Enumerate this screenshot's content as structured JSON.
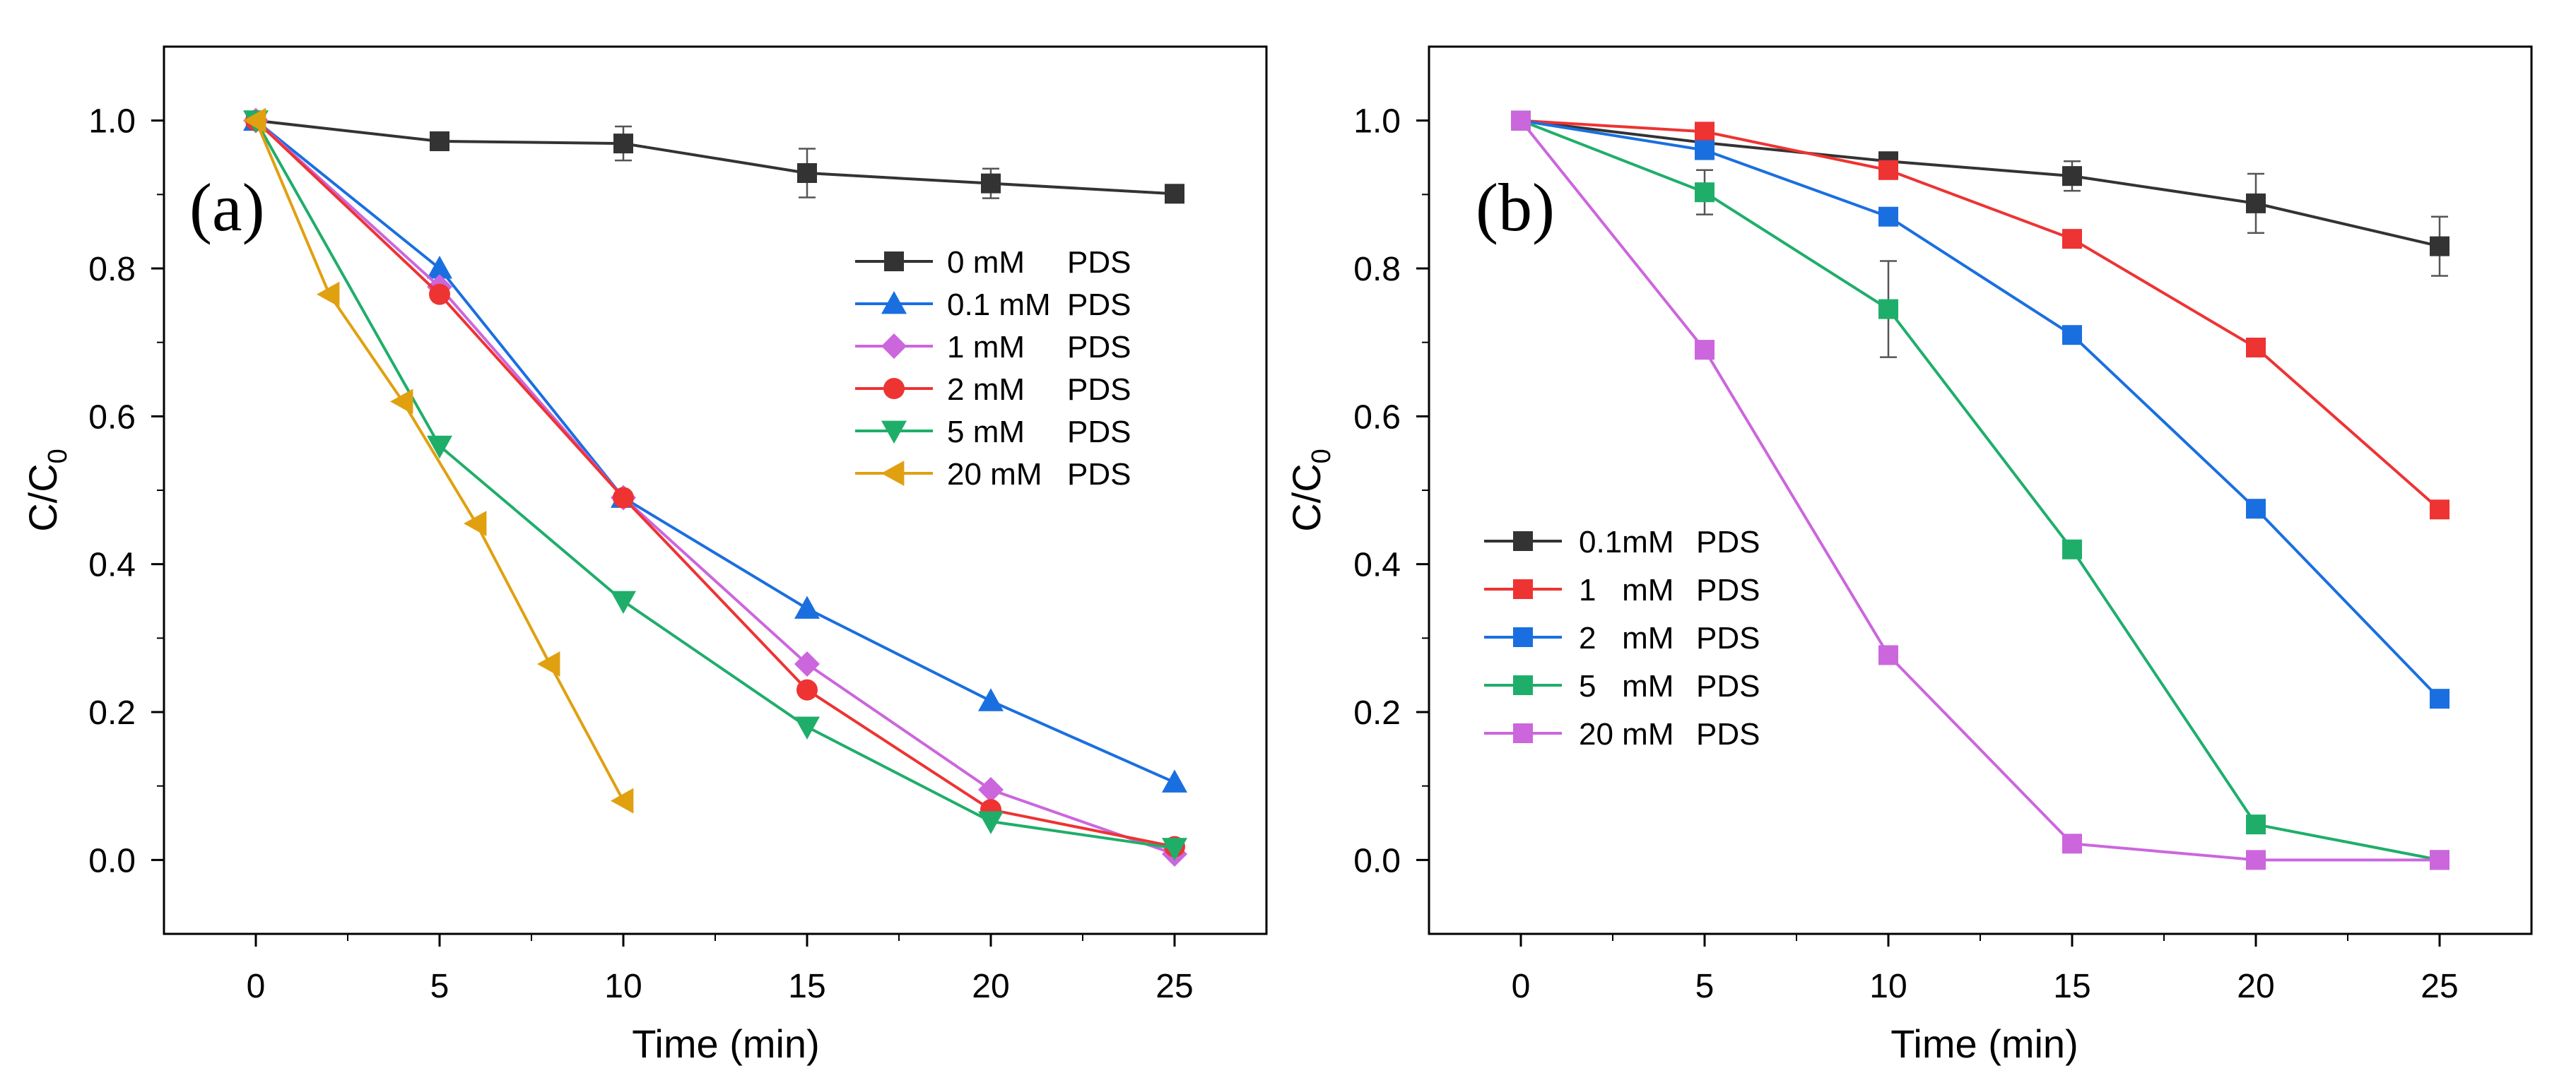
{
  "chart_data": [
    {
      "type": "line",
      "panel_label": "(a)",
      "xlabel": "Time (min)",
      "ylabel_main": "C/C",
      "ylabel_sub": "0",
      "xlim": [
        -2.5,
        27.5
      ],
      "ylim": [
        -0.1,
        1.1
      ],
      "xticks": [
        0,
        5,
        10,
        15,
        20,
        25
      ],
      "xtick_labels": [
        "0",
        "5",
        "10",
        "15",
        "20",
        "25"
      ],
      "yticks": [
        0.0,
        0.2,
        0.4,
        0.6,
        0.8,
        1.0
      ],
      "ytick_labels": [
        "0.0",
        "0.2",
        "0.4",
        "0.6",
        "0.8",
        "1.0"
      ],
      "legend_position": "right",
      "series": [
        {
          "name": "0 mM",
          "suffix": "PDS",
          "color": "#333333",
          "marker": "square",
          "x": [
            0,
            5,
            10,
            15,
            20,
            25
          ],
          "y": [
            1.0,
            0.972,
            0.969,
            0.929,
            0.915,
            0.901
          ],
          "err": [
            0,
            0.006,
            0.023,
            0.033,
            0.02,
            0.006
          ]
        },
        {
          "name": "0.1 mM",
          "suffix": "PDS",
          "color": "#1a6fe0",
          "marker": "triangle-up",
          "x": [
            0,
            5,
            10,
            15,
            20,
            25
          ],
          "y": [
            1.0,
            0.8,
            0.49,
            0.34,
            0.215,
            0.105
          ]
        },
        {
          "name": "1 mM",
          "suffix": "PDS",
          "color": "#cc66dd",
          "marker": "diamond",
          "x": [
            0,
            5,
            10,
            15,
            20,
            25
          ],
          "y": [
            1.0,
            0.775,
            0.49,
            0.265,
            0.095,
            0.008
          ]
        },
        {
          "name": "2 mM",
          "suffix": "PDS",
          "color": "#ee3333",
          "marker": "circle",
          "x": [
            0,
            5,
            10,
            15,
            20,
            25
          ],
          "y": [
            1.0,
            0.765,
            0.49,
            0.23,
            0.068,
            0.018
          ]
        },
        {
          "name": "5 mM",
          "suffix": "PDS",
          "color": "#1fae6a",
          "marker": "triangle-down",
          "x": [
            0,
            5,
            10,
            15,
            20,
            25
          ],
          "y": [
            1.0,
            0.56,
            0.35,
            0.18,
            0.052,
            0.016
          ]
        },
        {
          "name": "20 mM",
          "suffix": "PDS",
          "color": "#e0a010",
          "marker": "triangle-left",
          "x": [
            0,
            2,
            4,
            6,
            8,
            10
          ],
          "y": [
            1.0,
            0.765,
            0.62,
            0.455,
            0.265,
            0.08
          ]
        }
      ]
    },
    {
      "type": "line",
      "panel_label": "(b)",
      "xlabel": "Time (min)",
      "ylabel_main": "C/C",
      "ylabel_sub": "0",
      "xlim": [
        -2.5,
        27.5
      ],
      "ylim": [
        -0.1,
        1.1
      ],
      "xticks": [
        0,
        5,
        10,
        15,
        20,
        25
      ],
      "xtick_labels": [
        "0",
        "5",
        "10",
        "15",
        "20",
        "25"
      ],
      "yticks": [
        0.0,
        0.2,
        0.4,
        0.6,
        0.8,
        1.0
      ],
      "ytick_labels": [
        "0.0",
        "0.2",
        "0.4",
        "0.6",
        "0.8",
        "1.0"
      ],
      "legend_position": "left",
      "series": [
        {
          "name": "0.1mM",
          "suffix": "PDS",
          "color": "#333333",
          "marker": "square",
          "x": [
            0,
            5,
            10,
            15,
            20,
            25
          ],
          "y": [
            1.0,
            0.97,
            0.945,
            0.925,
            0.888,
            0.83
          ],
          "err": [
            0,
            0.006,
            0.006,
            0.02,
            0.04,
            0.04
          ]
        },
        {
          "name": "1   mM",
          "suffix": "PDS",
          "color": "#ee3333",
          "marker": "square",
          "x": [
            0,
            5,
            10,
            15,
            20,
            25
          ],
          "y": [
            1.0,
            0.985,
            0.933,
            0.84,
            0.693,
            0.474
          ]
        },
        {
          "name": "2   mM",
          "suffix": "PDS",
          "color": "#1a6fe0",
          "marker": "square",
          "x": [
            0,
            5,
            10,
            15,
            20,
            25
          ],
          "y": [
            1.0,
            0.96,
            0.87,
            0.71,
            0.475,
            0.218
          ]
        },
        {
          "name": "5   mM",
          "suffix": "PDS",
          "color": "#1fae6a",
          "marker": "square",
          "x": [
            0,
            5,
            10,
            15,
            20,
            25
          ],
          "y": [
            1.0,
            0.903,
            0.745,
            0.42,
            0.048,
            0.0
          ],
          "err": [
            0,
            0.03,
            0.065,
            0,
            0,
            0
          ]
        },
        {
          "name": "20 mM",
          "suffix": "PDS",
          "color": "#cc66dd",
          "marker": "square",
          "x": [
            0,
            5,
            10,
            15,
            20,
            25
          ],
          "y": [
            1.0,
            0.69,
            0.277,
            0.022,
            0.0,
            0.0
          ]
        }
      ]
    }
  ]
}
